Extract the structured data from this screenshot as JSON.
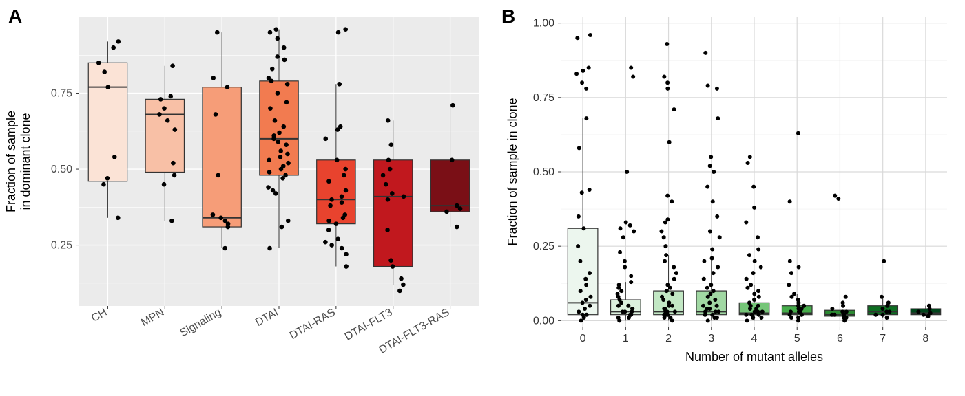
{
  "panelA": {
    "label": "A",
    "type": "boxplot",
    "y_title_line1": "Fraction of sample",
    "y_title_line2": "in dominant clone",
    "y_ticks": [
      0.25,
      0.5,
      0.75
    ],
    "y_range": [
      0.05,
      1.0
    ],
    "background_color": "#ebebeb",
    "grid_color": "#ffffff",
    "categories": [
      {
        "label": "CH",
        "fill": "#fbe3d6",
        "q1": 0.46,
        "median": 0.77,
        "q3": 0.85,
        "low": 0.34,
        "high": 0.92,
        "points": [
          0.34,
          0.45,
          0.47,
          0.54,
          0.77,
          0.82,
          0.85,
          0.9,
          0.92
        ]
      },
      {
        "label": "MPN",
        "fill": "#f8c0a6",
        "q1": 0.49,
        "median": 0.68,
        "q3": 0.73,
        "low": 0.33,
        "high": 0.84,
        "points": [
          0.33,
          0.45,
          0.48,
          0.52,
          0.63,
          0.66,
          0.68,
          0.7,
          0.73,
          0.74,
          0.84
        ]
      },
      {
        "label": "Signaling",
        "fill": "#f69d78",
        "q1": 0.31,
        "median": 0.34,
        "q3": 0.77,
        "low": 0.24,
        "high": 0.95,
        "points": [
          0.24,
          0.31,
          0.32,
          0.33,
          0.34,
          0.35,
          0.48,
          0.68,
          0.77,
          0.8,
          0.95
        ]
      },
      {
        "label": "DTAI",
        "fill": "#f27b50",
        "q1": 0.48,
        "median": 0.6,
        "q3": 0.79,
        "low": 0.24,
        "high": 0.96,
        "points": [
          0.24,
          0.31,
          0.33,
          0.42,
          0.43,
          0.44,
          0.47,
          0.48,
          0.49,
          0.5,
          0.51,
          0.52,
          0.53,
          0.54,
          0.55,
          0.56,
          0.58,
          0.59,
          0.6,
          0.61,
          0.62,
          0.64,
          0.66,
          0.7,
          0.72,
          0.75,
          0.78,
          0.79,
          0.8,
          0.83,
          0.86,
          0.87,
          0.9,
          0.93,
          0.95,
          0.96
        ]
      },
      {
        "label": "DTAI-RAS",
        "fill": "#e8432e",
        "q1": 0.32,
        "median": 0.4,
        "q3": 0.53,
        "low": 0.18,
        "high": 0.78,
        "points": [
          0.18,
          0.22,
          0.24,
          0.25,
          0.26,
          0.27,
          0.3,
          0.32,
          0.33,
          0.34,
          0.35,
          0.38,
          0.39,
          0.4,
          0.41,
          0.43,
          0.46,
          0.48,
          0.5,
          0.53,
          0.6,
          0.63,
          0.64,
          0.78,
          0.95,
          0.96
        ]
      },
      {
        "label": "DTAI-FLT3",
        "fill": "#c1181e",
        "q1": 0.18,
        "median": 0.41,
        "q3": 0.53,
        "low": 0.12,
        "high": 0.66,
        "points": [
          0.1,
          0.12,
          0.14,
          0.18,
          0.2,
          0.3,
          0.4,
          0.41,
          0.42,
          0.45,
          0.48,
          0.5,
          0.53,
          0.58,
          0.66
        ]
      },
      {
        "label": "DTAI-FLT3-RAS",
        "fill": "#7a0f16",
        "q1": 0.36,
        "median": 0.38,
        "q3": 0.53,
        "low": 0.31,
        "high": 0.71,
        "points": [
          0.31,
          0.36,
          0.37,
          0.38,
          0.53,
          0.71
        ]
      }
    ]
  },
  "panelB": {
    "label": "B",
    "type": "boxplot",
    "y_title": "Fraction of sample in clone",
    "x_title": "Number of mutant alleles",
    "y_ticks": [
      0.0,
      0.25,
      0.5,
      0.75,
      1.0
    ],
    "y_range": [
      -0.02,
      1.02
    ],
    "background_color": "#ffffff",
    "grid_color": "#d9d9d9",
    "categories": [
      {
        "label": "0",
        "fill": "#ecf6ee",
        "q1": 0.02,
        "median": 0.06,
        "q3": 0.31,
        "low": 0.0,
        "high": 0.68,
        "points": [
          0.0,
          0.01,
          0.02,
          0.02,
          0.03,
          0.04,
          0.05,
          0.06,
          0.07,
          0.08,
          0.1,
          0.12,
          0.14,
          0.16,
          0.2,
          0.25,
          0.31,
          0.35,
          0.43,
          0.44,
          0.58,
          0.68,
          0.78,
          0.8,
          0.83,
          0.84,
          0.85,
          0.95,
          0.96
        ]
      },
      {
        "label": "1",
        "fill": "#dcf0de",
        "q1": 0.02,
        "median": 0.03,
        "q3": 0.07,
        "low": 0.0,
        "high": 0.13,
        "points": [
          0.0,
          0.01,
          0.01,
          0.02,
          0.02,
          0.02,
          0.03,
          0.03,
          0.03,
          0.04,
          0.04,
          0.05,
          0.05,
          0.06,
          0.07,
          0.08,
          0.09,
          0.1,
          0.11,
          0.12,
          0.13,
          0.15,
          0.18,
          0.2,
          0.23,
          0.28,
          0.3,
          0.31,
          0.32,
          0.33,
          0.5,
          0.82,
          0.85
        ]
      },
      {
        "label": "2",
        "fill": "#c2e7c4",
        "q1": 0.02,
        "median": 0.03,
        "q3": 0.1,
        "low": 0.0,
        "high": 0.22,
        "points": [
          0.0,
          0.01,
          0.01,
          0.02,
          0.02,
          0.02,
          0.03,
          0.03,
          0.03,
          0.04,
          0.04,
          0.05,
          0.05,
          0.06,
          0.07,
          0.08,
          0.09,
          0.1,
          0.11,
          0.12,
          0.14,
          0.16,
          0.18,
          0.2,
          0.22,
          0.25,
          0.28,
          0.3,
          0.33,
          0.34,
          0.4,
          0.42,
          0.6,
          0.71,
          0.78,
          0.8,
          0.82,
          0.93
        ]
      },
      {
        "label": "3",
        "fill": "#a1d8a3",
        "q1": 0.02,
        "median": 0.03,
        "q3": 0.1,
        "low": 0.0,
        "high": 0.21,
        "points": [
          0.0,
          0.01,
          0.01,
          0.02,
          0.02,
          0.02,
          0.03,
          0.03,
          0.03,
          0.04,
          0.04,
          0.05,
          0.05,
          0.06,
          0.07,
          0.08,
          0.09,
          0.1,
          0.11,
          0.12,
          0.14,
          0.16,
          0.18,
          0.2,
          0.21,
          0.24,
          0.28,
          0.3,
          0.35,
          0.4,
          0.45,
          0.5,
          0.52,
          0.55,
          0.68,
          0.78,
          0.79,
          0.9
        ]
      },
      {
        "label": "4",
        "fill": "#75c578",
        "q1": 0.02,
        "median": 0.025,
        "q3": 0.06,
        "low": 0.0,
        "high": 0.12,
        "points": [
          0.0,
          0.01,
          0.01,
          0.02,
          0.02,
          0.02,
          0.03,
          0.03,
          0.03,
          0.04,
          0.04,
          0.05,
          0.05,
          0.06,
          0.07,
          0.08,
          0.09,
          0.1,
          0.11,
          0.12,
          0.14,
          0.16,
          0.18,
          0.2,
          0.22,
          0.24,
          0.28,
          0.33,
          0.38,
          0.45,
          0.53,
          0.55
        ]
      },
      {
        "label": "5",
        "fill": "#45ac4a",
        "q1": 0.02,
        "median": 0.025,
        "q3": 0.05,
        "low": 0.0,
        "high": 0.09,
        "points": [
          0.0,
          0.01,
          0.01,
          0.02,
          0.02,
          0.02,
          0.03,
          0.03,
          0.03,
          0.04,
          0.04,
          0.05,
          0.05,
          0.06,
          0.07,
          0.08,
          0.09,
          0.12,
          0.16,
          0.18,
          0.2,
          0.4,
          0.63
        ]
      },
      {
        "label": "6",
        "fill": "#2c8b33",
        "q1": 0.015,
        "median": 0.02,
        "q3": 0.035,
        "low": 0.0,
        "high": 0.06,
        "points": [
          0.0,
          0.01,
          0.01,
          0.02,
          0.02,
          0.02,
          0.03,
          0.03,
          0.04,
          0.05,
          0.06,
          0.08,
          0.41,
          0.42
        ]
      },
      {
        "label": "7",
        "fill": "#0d6e21",
        "q1": 0.02,
        "median": 0.03,
        "q3": 0.05,
        "low": 0.01,
        "high": 0.08,
        "points": [
          0.01,
          0.02,
          0.02,
          0.03,
          0.03,
          0.04,
          0.05,
          0.06,
          0.08,
          0.2
        ]
      },
      {
        "label": "8",
        "fill": "#00441b",
        "q1": 0.02,
        "median": 0.025,
        "q3": 0.04,
        "low": 0.015,
        "high": 0.05,
        "points": [
          0.015,
          0.02,
          0.025,
          0.03,
          0.04,
          0.05
        ]
      }
    ]
  }
}
